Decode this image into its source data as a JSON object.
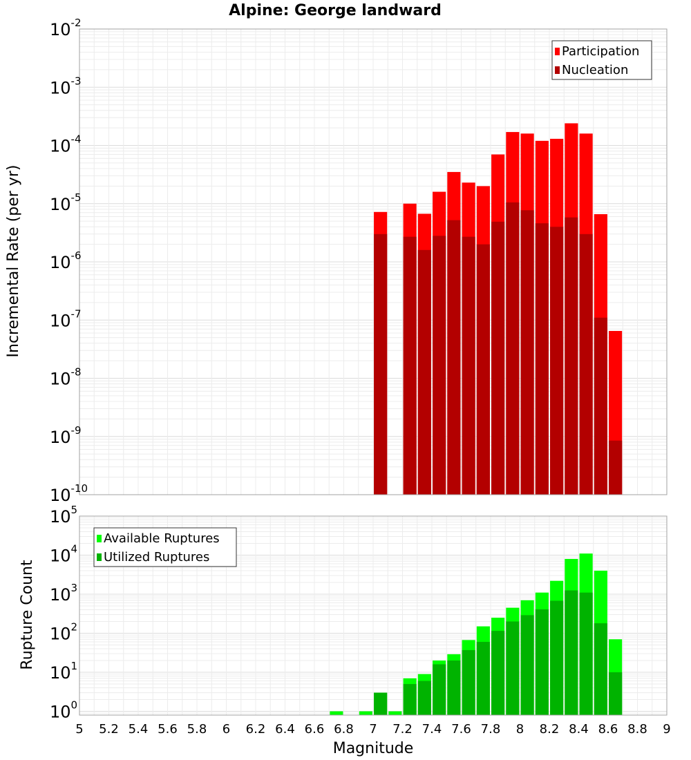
{
  "chart_data": [
    {
      "type": "bar",
      "title": "Alpine: George landward",
      "xlabel": "",
      "ylabel": "Incremental Rate (per yr)",
      "y_scale": "log",
      "ylim": [
        1e-10,
        0.01
      ],
      "xlim": [
        5,
        9
      ],
      "y_ticks": [
        {
          "base": "10",
          "exp": "-10",
          "value": 1e-10
        },
        {
          "base": "10",
          "exp": "-9",
          "value": 1e-09
        },
        {
          "base": "10",
          "exp": "-8",
          "value": 1e-08
        },
        {
          "base": "10",
          "exp": "-7",
          "value": 1e-07
        },
        {
          "base": "10",
          "exp": "-6",
          "value": 1e-06
        },
        {
          "base": "10",
          "exp": "-5",
          "value": 1e-05
        },
        {
          "base": "10",
          "exp": "-4",
          "value": 0.0001
        },
        {
          "base": "10",
          "exp": "-3",
          "value": 0.001
        },
        {
          "base": "10",
          "exp": "-2",
          "value": 0.01
        }
      ],
      "legend_position": "top-right",
      "grid": true,
      "bar_width": 0.09,
      "series": [
        {
          "name": "Participation",
          "color": "#ff0000",
          "x": [
            7.0,
            7.2,
            7.3,
            7.4,
            7.5,
            7.6,
            7.7,
            7.8,
            7.9,
            8.0,
            8.1,
            8.2,
            8.3,
            8.4,
            8.5,
            8.6
          ],
          "values": [
            7.2e-06,
            1e-05,
            6.7e-06,
            1.6e-05,
            3.5e-05,
            2.3e-05,
            2e-05,
            7e-05,
            0.00017,
            0.00016,
            0.00012,
            0.00013,
            0.00024,
            0.00016,
            6.6e-06,
            6.5e-08
          ]
        },
        {
          "name": "Nucleation",
          "color": "#b30000",
          "x": [
            7.0,
            7.2,
            7.3,
            7.4,
            7.5,
            7.6,
            7.7,
            7.8,
            7.9,
            8.0,
            8.1,
            8.2,
            8.3,
            8.4,
            8.5,
            8.6
          ],
          "values": [
            3e-06,
            2.7e-06,
            1.6e-06,
            2.8e-06,
            5.2e-06,
            2.7e-06,
            2e-06,
            4.9e-06,
            1.05e-05,
            7.7e-06,
            4.6e-06,
            4e-06,
            5.8e-06,
            3e-06,
            1.1e-07,
            8.5e-10
          ]
        }
      ]
    },
    {
      "type": "bar",
      "title": "",
      "xlabel": "Magnitude",
      "ylabel": "Rupture Count",
      "y_scale": "log",
      "ylim": [
        0.8,
        100000.0
      ],
      "xlim": [
        5,
        9
      ],
      "x_ticks": [
        "5",
        "5.2",
        "5.4",
        "5.6",
        "5.8",
        "6",
        "6.2",
        "6.4",
        "6.6",
        "6.8",
        "7",
        "7.2",
        "7.4",
        "7.6",
        "7.8",
        "8",
        "8.2",
        "8.4",
        "8.6",
        "8.8",
        "9"
      ],
      "y_ticks": [
        {
          "base": "10",
          "exp": "0",
          "value": 1
        },
        {
          "base": "10",
          "exp": "1",
          "value": 10
        },
        {
          "base": "10",
          "exp": "2",
          "value": 100
        },
        {
          "base": "10",
          "exp": "3",
          "value": 1000
        },
        {
          "base": "10",
          "exp": "4",
          "value": 10000
        },
        {
          "base": "10",
          "exp": "5",
          "value": 100000
        }
      ],
      "legend_position": "top-left",
      "grid": true,
      "bar_width": 0.09,
      "series": [
        {
          "name": "Available Ruptures",
          "color": "#00ff00",
          "x": [
            6.7,
            6.9,
            7.0,
            7.1,
            7.2,
            7.3,
            7.4,
            7.5,
            7.6,
            7.7,
            7.8,
            7.9,
            8.0,
            8.1,
            8.2,
            8.3,
            8.4,
            8.5,
            8.6
          ],
          "values": [
            1,
            1,
            3,
            1,
            7,
            9,
            20,
            29,
            67,
            150,
            250,
            450,
            700,
            1100,
            2200,
            8000,
            11000,
            4000,
            70
          ]
        },
        {
          "name": "Utilized Ruptures",
          "color": "#00b300",
          "x": [
            6.7,
            6.9,
            7.0,
            7.1,
            7.2,
            7.3,
            7.4,
            7.5,
            7.6,
            7.7,
            7.8,
            7.9,
            8.0,
            8.1,
            8.2,
            8.3,
            8.4,
            8.5,
            8.6
          ],
          "values": [
            0,
            0,
            3,
            0,
            5,
            6,
            16,
            20,
            37,
            60,
            115,
            200,
            290,
            410,
            680,
            1250,
            1100,
            180,
            10
          ]
        }
      ]
    }
  ]
}
